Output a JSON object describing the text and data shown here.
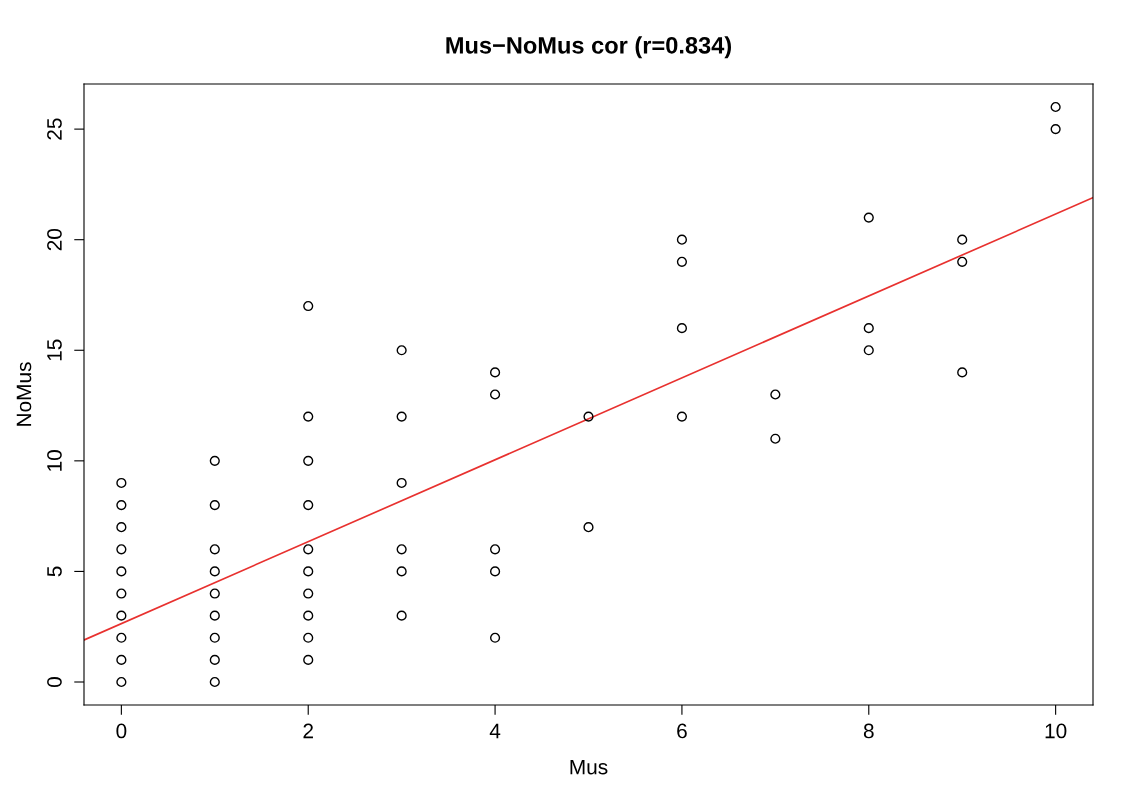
{
  "chart_data": {
    "type": "scatter",
    "title": "Mus−NoMus cor (r=0.834)",
    "xlabel": "Mus",
    "ylabel": "NoMus",
    "xlim": [
      -0.4,
      10.4
    ],
    "ylim": [
      -1.04,
      27.04
    ],
    "xticks": [
      0,
      2,
      4,
      6,
      8,
      10
    ],
    "yticks": [
      0,
      5,
      10,
      15,
      20,
      25
    ],
    "grid": false,
    "marker": "circle",
    "series": [
      {
        "color": "#000000",
        "x": [
          0,
          0,
          0,
          0,
          0,
          0,
          0,
          0,
          0,
          0,
          1,
          1,
          1,
          1,
          1,
          1,
          1,
          1,
          1,
          2,
          2,
          2,
          2,
          2,
          2,
          2,
          2,
          2,
          2,
          3,
          3,
          3,
          3,
          3,
          3,
          4,
          4,
          4,
          4,
          4,
          5,
          5,
          6,
          6,
          6,
          6,
          7,
          7,
          8,
          8,
          8,
          9,
          9,
          9,
          10,
          10
        ],
        "values": [
          0,
          1,
          2,
          3,
          4,
          5,
          6,
          7,
          8,
          9,
          0,
          1,
          2,
          3,
          4,
          5,
          6,
          8,
          10,
          1,
          2,
          3,
          4,
          5,
          6,
          8,
          10,
          12,
          17,
          3,
          5,
          6,
          9,
          12,
          15,
          2,
          5,
          6,
          13,
          14,
          7,
          12,
          12,
          16,
          19,
          20,
          11,
          13,
          15,
          16,
          21,
          14,
          19,
          20,
          25,
          26
        ]
      },
      {
        "type": "line",
        "color": "#e8312f",
        "marker": "none",
        "x": [
          -0.4,
          10.4
        ],
        "values": [
          1.9,
          21.9
        ]
      }
    ]
  }
}
